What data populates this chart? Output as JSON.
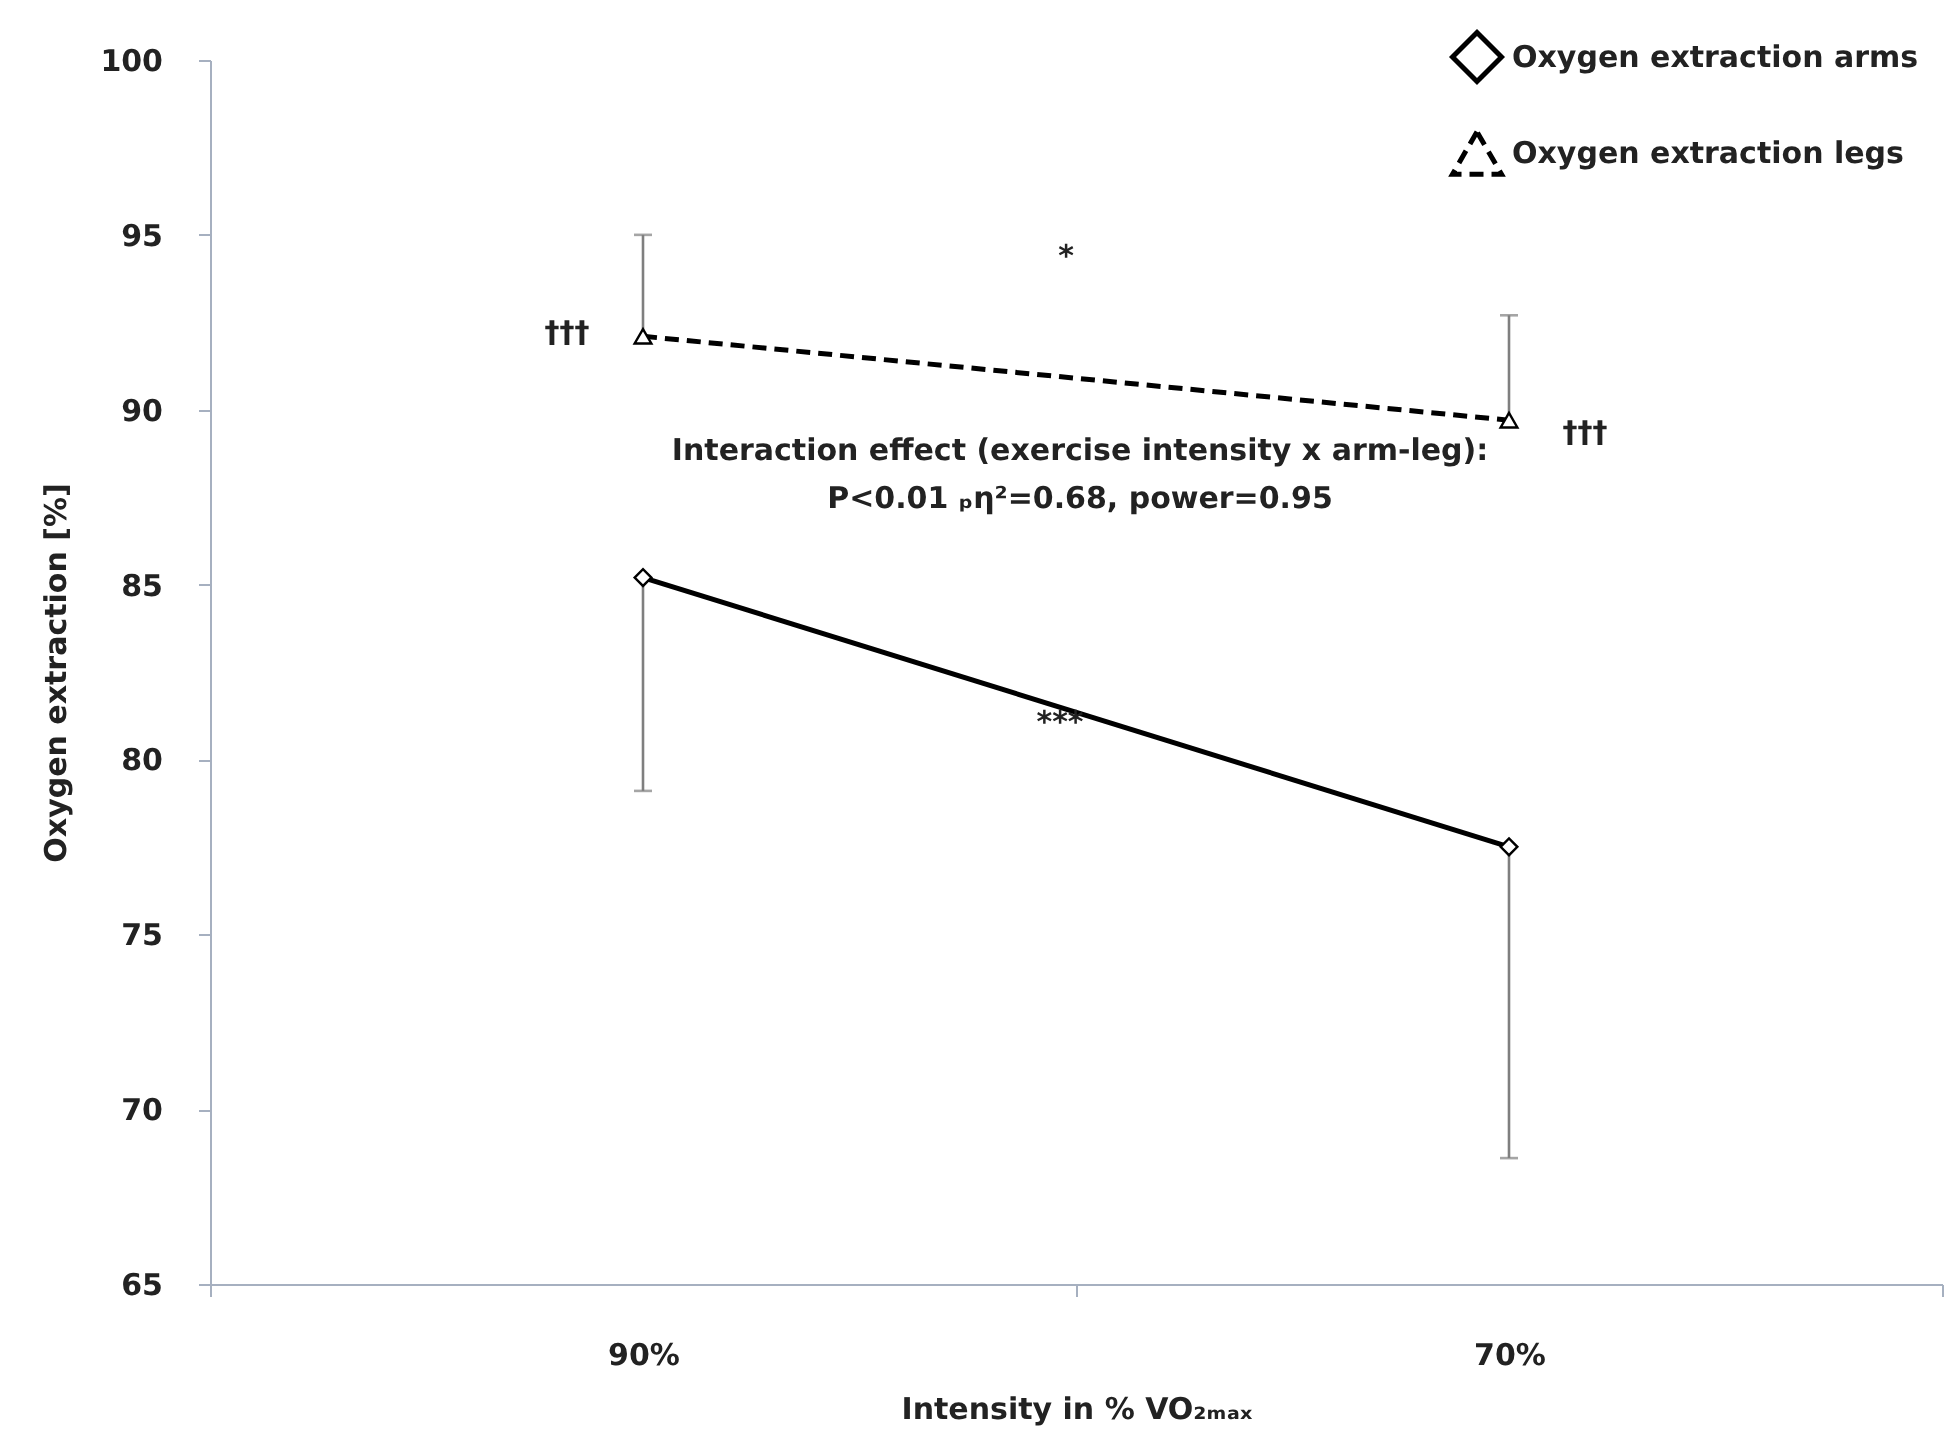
{
  "chart_data": {
    "type": "line",
    "xlabel": "Intensity in % VO₂ₘₐₓ",
    "ylabel": "Oxygen extraction [%]",
    "categories": [
      "90%",
      "70%"
    ],
    "series": [
      {
        "name": "Oxygen extraction arms",
        "color": "#000000",
        "values": [
          85.2,
          77.5
        ],
        "errors": [
          [
            79.1,
            85.2
          ],
          [
            68.6,
            77.5
          ]
        ],
        "marker": "diamond",
        "line_style": "solid"
      },
      {
        "name": "Oxygen extraction legs",
        "color": "#000000",
        "values": [
          92.1,
          89.7
        ],
        "errors": [
          [
            92.1,
            95.0
          ],
          [
            89.7,
            92.7
          ]
        ],
        "marker": "triangle",
        "line_style": "dashed"
      }
    ],
    "ylim": [
      65,
      100
    ],
    "yticks": [
      65,
      70,
      75,
      80,
      85,
      90,
      95,
      100
    ],
    "grid": false,
    "legend": "top right",
    "annotations": [
      "*",
      {
        "text": "†††",
        "x": "90%",
        "y": 92.1
      },
      {
        "text": "†††",
        "x": "70%",
        "y": 89.7
      },
      "Interaction effect  (exercise intensity  x arm-leg):",
      "P<0.01  ₚη²=0.68, power=0.95",
      "***"
    ]
  }
}
